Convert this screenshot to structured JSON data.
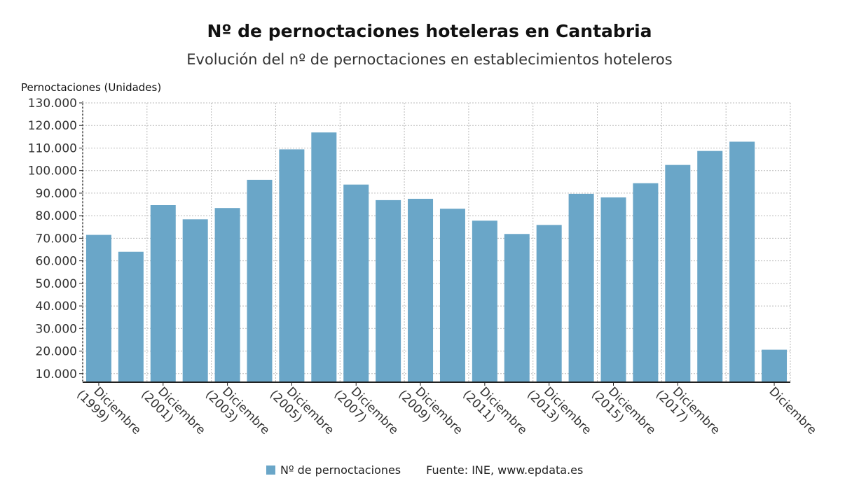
{
  "chart_data": {
    "type": "bar",
    "title": "Nº de pernoctaciones hoteleras en Cantabria",
    "subtitle": "Evolución del nº de pernoctaciones en establecimientos hoteleros",
    "ylabel": "Pernoctaciones (Unidades)",
    "xlabel": "",
    "ylim": [
      6200,
      130000
    ],
    "yticks": [
      "10.000",
      "20.000",
      "30.000",
      "40.000",
      "50.000",
      "60.000",
      "70.000",
      "80.000",
      "90.000",
      "100.000",
      "110.000",
      "120.000",
      "130.000"
    ],
    "ytick_values": [
      10000,
      20000,
      30000,
      40000,
      50000,
      60000,
      70000,
      80000,
      90000,
      100000,
      110000,
      120000,
      130000
    ],
    "grid": true,
    "legend_position": "bottom",
    "categories": [
      [
        "Diciembre",
        "(1999)"
      ],
      [
        "",
        ""
      ],
      [
        "Diciembre",
        "(2001)"
      ],
      [
        "",
        ""
      ],
      [
        "Diciembre",
        "(2003)"
      ],
      [
        "",
        ""
      ],
      [
        "Diciembre",
        "(2005)"
      ],
      [
        "",
        ""
      ],
      [
        "Diciembre",
        "(2007)"
      ],
      [
        "",
        ""
      ],
      [
        "Diciembre",
        "(2009)"
      ],
      [
        "",
        ""
      ],
      [
        "Diciembre",
        "(2011)"
      ],
      [
        "",
        ""
      ],
      [
        "Diciembre",
        "(2013)"
      ],
      [
        "",
        ""
      ],
      [
        "Diciembre",
        "(2015)"
      ],
      [
        "",
        ""
      ],
      [
        "Diciembre",
        "(2017)"
      ],
      [
        "",
        ""
      ],
      [
        "",
        ""
      ],
      [
        "Diciembre",
        ""
      ]
    ],
    "series": [
      {
        "name": "Nº de pernoctaciones",
        "color": "#6aa6c8",
        "values": [
          71500,
          64000,
          84700,
          78400,
          83400,
          95900,
          109400,
          116900,
          93800,
          86900,
          87500,
          83100,
          77800,
          71900,
          75900,
          89700,
          88100,
          94400,
          102500,
          108700,
          112800,
          20600
        ]
      }
    ],
    "source": "Fuente: INE, www.epdata.es"
  }
}
